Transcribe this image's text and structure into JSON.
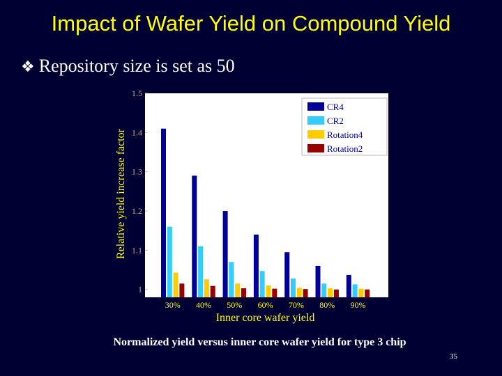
{
  "slide": {
    "title": "Impact of Wafer Yield on Compound Yield",
    "bullet_icon": "diamond-bullet-icon",
    "bullet_text": "Repository size is set as 50",
    "caption": "Normalized yield versus inner core wafer yield for type 3 chip",
    "slide_number": "35"
  },
  "chart_data": {
    "type": "bar",
    "xlabel": "Inner core wafer yield",
    "ylabel": "Relative yield increase factor",
    "categories": [
      "30%",
      "40%",
      "50%",
      "60%",
      "70%",
      "80%",
      "90%"
    ],
    "ylim": [
      0.98,
      1.5
    ],
    "yticks": [
      "1",
      "1.1",
      "1.2",
      "1.3",
      "1.4",
      "1.5"
    ],
    "legend_position": "top-right",
    "grid": false,
    "series": [
      {
        "name": "CR4",
        "color": "#000099",
        "values": [
          1.41,
          1.29,
          1.2,
          1.14,
          1.095,
          1.06,
          1.037
        ]
      },
      {
        "name": "CR2",
        "color": "#33ccff",
        "values": [
          1.16,
          1.11,
          1.07,
          1.047,
          1.028,
          1.015,
          1.013
        ]
      },
      {
        "name": "Rotation4",
        "color": "#ffcc00",
        "values": [
          1.043,
          1.026,
          1.015,
          1.01,
          1.004,
          1.003,
          1.002
        ]
      },
      {
        "name": "Rotation2",
        "color": "#990000",
        "values": [
          1.015,
          1.009,
          1.003,
          1.002,
          1.001,
          1.0,
          1.0
        ]
      }
    ],
    "colors": {
      "axis_text": "#c9a5a5",
      "label_text": "#ffff00",
      "plot_bg": "#ffffff"
    }
  }
}
